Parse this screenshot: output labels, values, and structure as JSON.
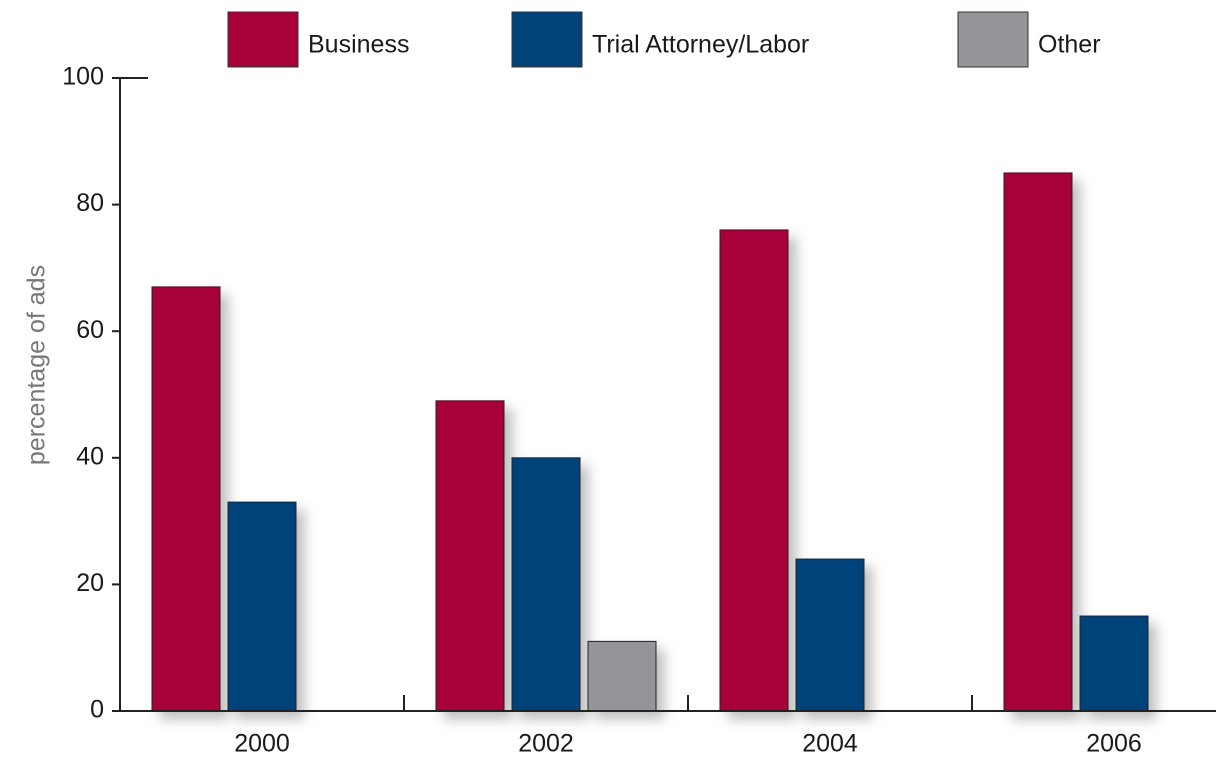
{
  "chart_data": {
    "type": "bar",
    "y_label": "percentage of ads",
    "categories": [
      "2000",
      "2002",
      "2004",
      "2006"
    ],
    "series": [
      {
        "name": "Business",
        "color": "#a8003a",
        "values": [
          67,
          49,
          76,
          85
        ]
      },
      {
        "name": "Trial Attorney/Labor",
        "color": "#00437a",
        "values": [
          33,
          40,
          24,
          15
        ]
      },
      {
        "name": "Other",
        "color": "#939598",
        "values": [
          null,
          11,
          null,
          null
        ]
      }
    ],
    "ylim": [
      0,
      100
    ],
    "yticks": [
      0,
      20,
      40,
      60,
      80,
      100
    ],
    "grid": false,
    "legend": "top"
  }
}
